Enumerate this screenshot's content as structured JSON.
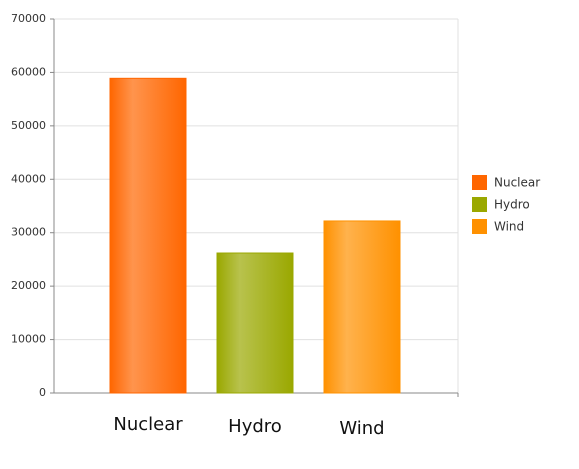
{
  "chart_data": {
    "type": "bar",
    "categories": [
      "Nuclear",
      "Hydro",
      "Wind"
    ],
    "values": [
      58900,
      26200,
      32200
    ],
    "colors": [
      "#ff6600",
      "#9aa800",
      "#ff9100"
    ],
    "ylim": [
      0,
      70000
    ],
    "yticks": [
      0,
      10000,
      20000,
      30000,
      40000,
      50000,
      60000,
      70000
    ],
    "grid": true,
    "legend": "right"
  }
}
